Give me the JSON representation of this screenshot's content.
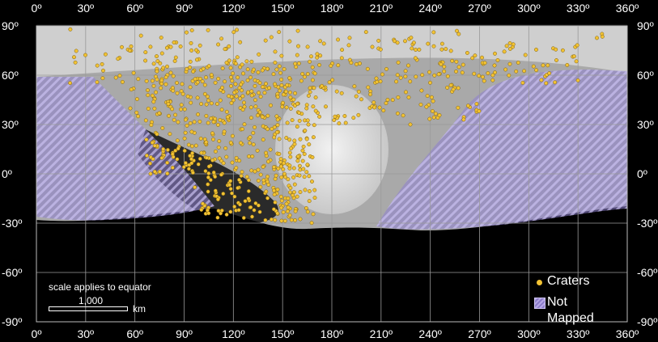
{
  "map": {
    "lon_labels": [
      "0º",
      "30º",
      "60º",
      "90º",
      "120º",
      "150º",
      "180º",
      "210º",
      "240º",
      "270º",
      "300º",
      "330º",
      "360º"
    ],
    "lat_labels": [
      "90º",
      "60º",
      "30º",
      "0º",
      "-30º",
      "-60º",
      "-90º"
    ],
    "lon_range": [
      0,
      360
    ],
    "lat_range": [
      -90,
      90
    ],
    "colors": {
      "crater": "#f2c233",
      "not_mapped": "#9b8ad6",
      "grid": "#9a9a9a",
      "background": "#000000"
    }
  },
  "scale": {
    "note": "scale applies to equator",
    "value": "1,000",
    "unit": "km"
  },
  "legend": {
    "craters": "Craters",
    "not_mapped": "Not Mapped"
  }
}
